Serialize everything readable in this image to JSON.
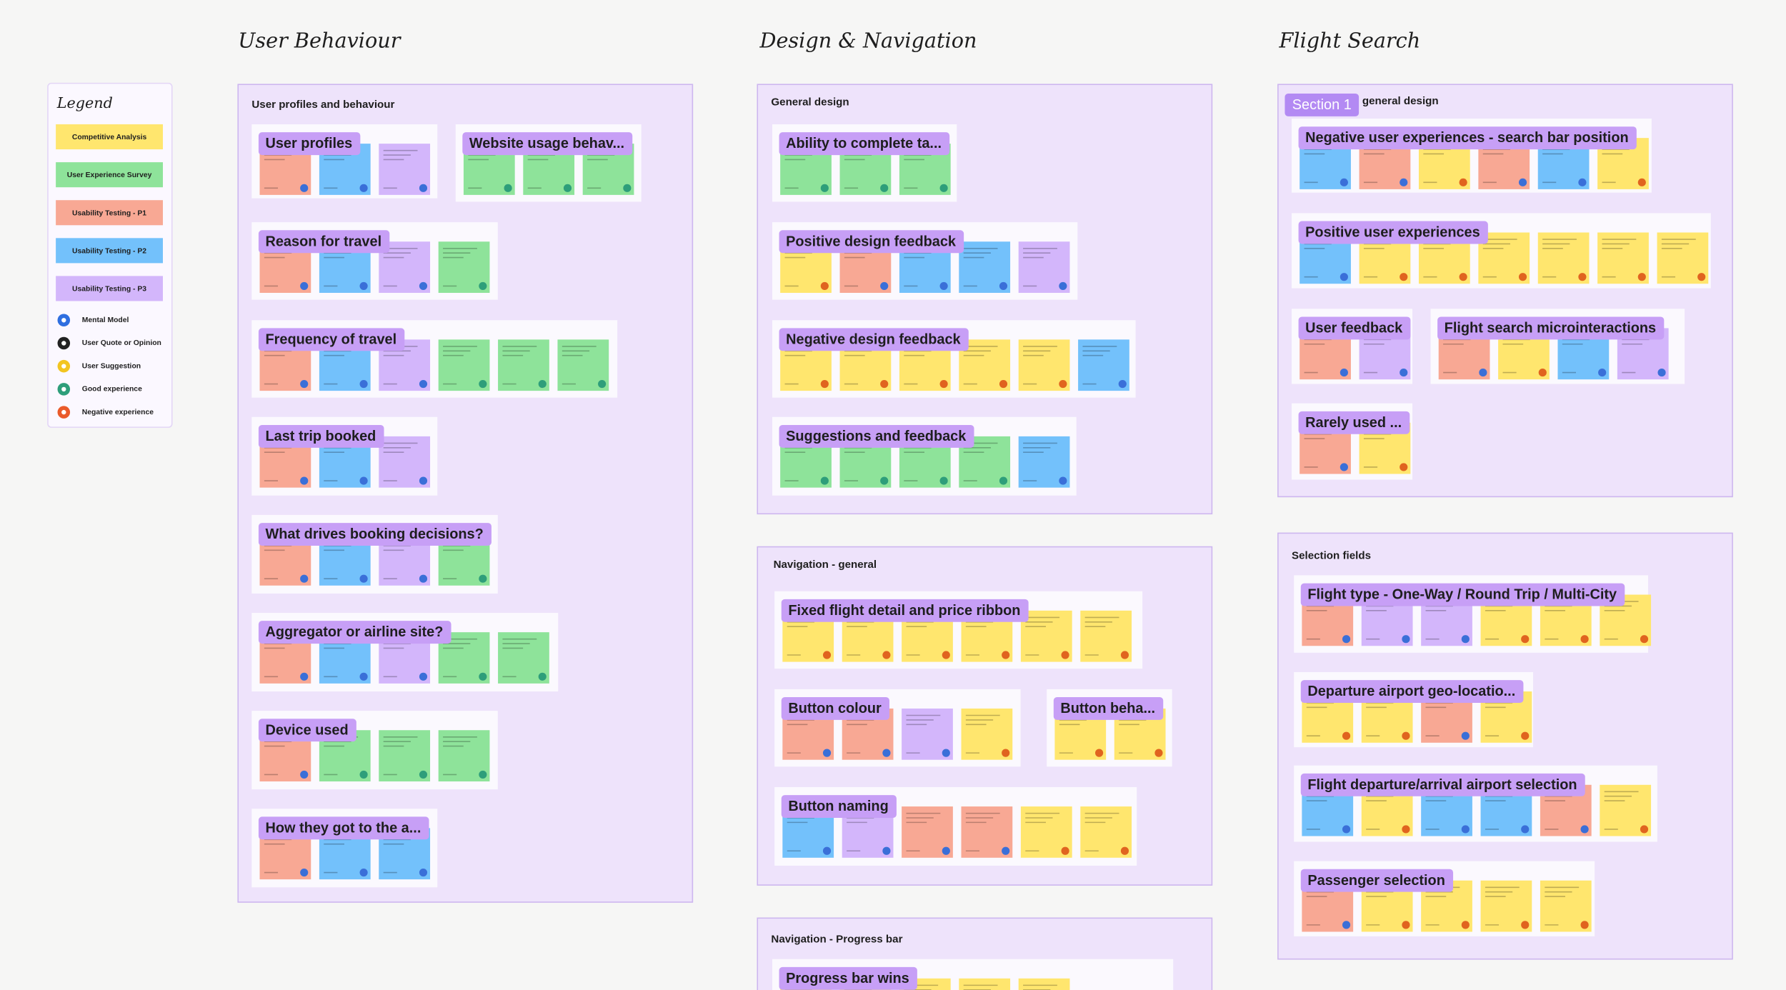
{
  "legend": {
    "title": "Legend",
    "items": [
      "Competitive Analysis",
      "User Experience Survey",
      "Usability Testing - P1",
      "Usability Testing - P2",
      "Usability Testing - P3"
    ],
    "icons": [
      "Mental Model",
      "User Quote or Opinion",
      "User Suggestion",
      "Good experience",
      "Negative experience"
    ]
  },
  "columns": [
    {
      "title": "User Behaviour",
      "sections": [
        {
          "title": "User profiles and behaviour",
          "groups": [
            "User profiles",
            "Website usage behav...",
            "Reason for travel",
            "Frequency of travel",
            "Last trip booked",
            "What drives booking decisions?",
            "Aggregator or airline site?",
            "Device used",
            "How they got to the a..."
          ]
        }
      ]
    },
    {
      "title": "Design & Navigation",
      "sections": [
        {
          "title": "General design",
          "groups": [
            "Ability to complete ta...",
            "Positive design feedback",
            "Negative design feedback",
            "Suggestions and feedback"
          ]
        },
        {
          "title": "Navigation - general",
          "groups": [
            "Fixed flight detail and price ribbon",
            "Button colour",
            "Button beha...",
            "Button naming"
          ]
        },
        {
          "title": "Navigation - Progress bar",
          "groups": [
            "Progress bar wins"
          ]
        }
      ]
    },
    {
      "title": "Flight Search",
      "sections": [
        {
          "badge": "Section 1",
          "title": "general  design",
          "groups": [
            "Negative user experiences - search bar position",
            "Positive user experiences",
            "User feedback",
            "Flight search microinteractions",
            "Rarely used ..."
          ]
        },
        {
          "title": "Selection fields",
          "groups": [
            "Flight type - One-Way / Round Trip / Multi-City",
            "Departure airport geo-locatio...",
            "Flight departure/arrival airport selection",
            "Passenger selection"
          ]
        }
      ]
    }
  ]
}
